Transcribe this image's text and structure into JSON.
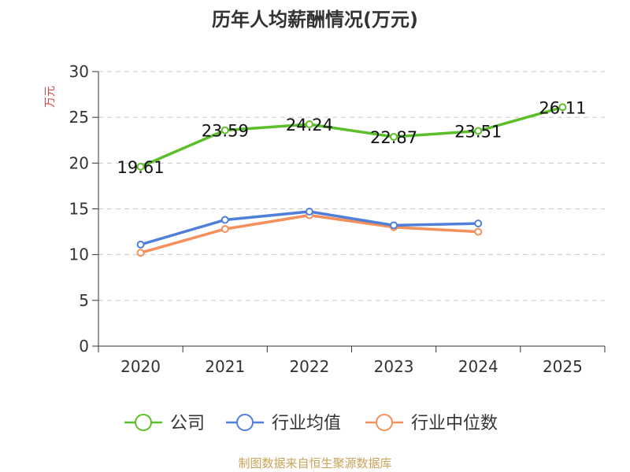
{
  "chart_data": {
    "type": "line",
    "title": "历年人均薪酬情况(万元)",
    "ylabel": "万元",
    "xlabel": "",
    "ylim": [
      0,
      30
    ],
    "yticks": [
      0,
      5,
      10,
      15,
      20,
      25,
      30
    ],
    "categories": [
      "2020",
      "2021",
      "2022",
      "2023",
      "2024",
      "2025"
    ],
    "grid": true,
    "legend_position": "bottom",
    "series": [
      {
        "name": "公司",
        "color": "#5cbf2a",
        "values": [
          19.61,
          23.59,
          24.24,
          22.87,
          23.51,
          26.11
        ],
        "labels": [
          "19.61",
          "23.59",
          "24.24",
          "22.87",
          "23.51",
          "26.11"
        ]
      },
      {
        "name": "行业均值",
        "color": "#4f7fd9",
        "values": [
          11.1,
          13.8,
          14.7,
          13.2,
          13.4,
          null
        ]
      },
      {
        "name": "行业中位数",
        "color": "#f5905a",
        "values": [
          10.2,
          12.8,
          14.3,
          13.0,
          12.5,
          null
        ]
      }
    ],
    "source": "制图数据来自恒生聚源数据库"
  }
}
